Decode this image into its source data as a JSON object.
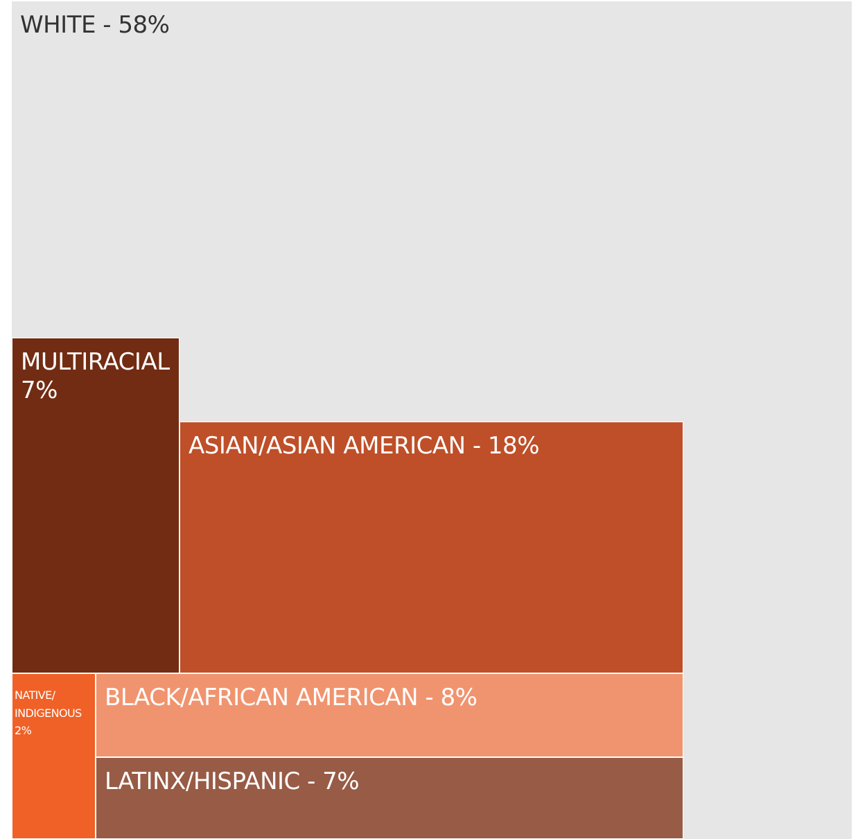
{
  "chart_data": {
    "type": "treemap",
    "title": "",
    "items": [
      {
        "name": "WHITE",
        "value": 58,
        "label": "WHITE - 58%",
        "color": "#e6e6e6",
        "text_color": "#333333"
      },
      {
        "name": "MULTIRACIAL",
        "value": 7,
        "label": "MULTIRACIAL\n7%",
        "color": "#722c13",
        "text_color": "#ffffff"
      },
      {
        "name": "ASIAN/ASIAN AMERICAN",
        "value": 18,
        "label": "ASIAN/ASIAN AMERICAN - 18%",
        "color": "#be4f28",
        "text_color": "#ffffff"
      },
      {
        "name": "NATIVE/ INDIGENOUS",
        "value": 2,
        "label": "NATIVE/\nINDIGENOUS\n2%",
        "color": "#ef6127",
        "text_color": "#ffffff"
      },
      {
        "name": "BLACK/AFRICAN AMERICAN",
        "value": 8,
        "label": "BLACK/AFRICAN AMERICAN - 8%",
        "color": "#f0946f",
        "text_color": "#ffffff"
      },
      {
        "name": "LATINX/HISPANIC",
        "value": 7,
        "label": "LATINX/HISPANIC - 7%",
        "color": "#985b45",
        "text_color": "#ffffff"
      }
    ]
  }
}
